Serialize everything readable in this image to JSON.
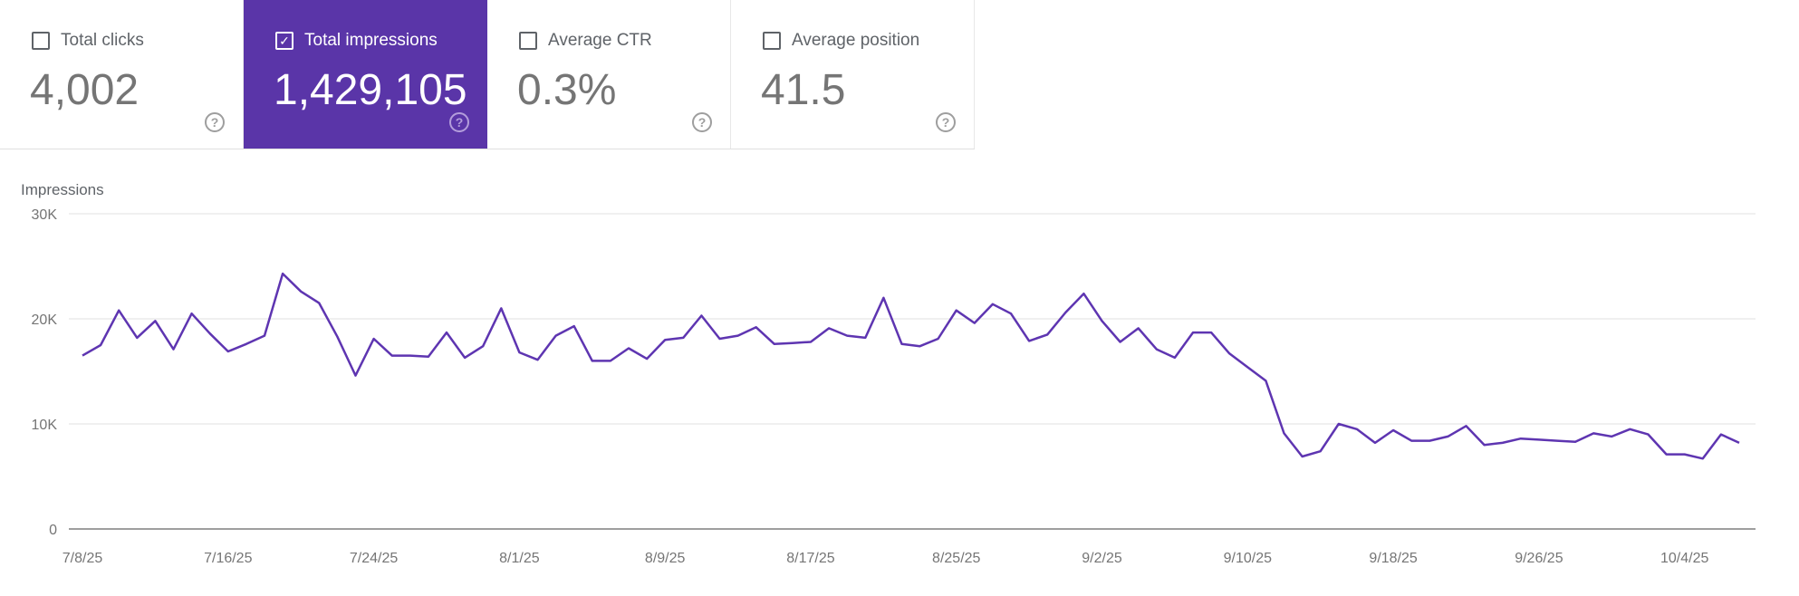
{
  "metrics": [
    {
      "label": "Total clicks",
      "value": "4,002",
      "checked": false
    },
    {
      "label": "Total impressions",
      "value": "1,429,105",
      "checked": true
    },
    {
      "label": "Average CTR",
      "value": "0.3%",
      "checked": false
    },
    {
      "label": "Average position",
      "value": "41.5",
      "checked": false
    }
  ],
  "icons": {
    "checkbox": "checkbox-icon",
    "help": "help-circle-icon"
  },
  "colors": {
    "accent": "#5a35a8",
    "line": "#5e35b1"
  },
  "chart_data": {
    "type": "line",
    "ylabel": "Impressions",
    "ylim": [
      0,
      30000
    ],
    "yticks": [
      "0",
      "10K",
      "20K",
      "30K"
    ],
    "ytick_values": [
      0,
      10000,
      20000,
      30000
    ],
    "grid": true,
    "x_start": "2025-07-08",
    "xticks": [
      "7/8/25",
      "7/16/25",
      "7/24/25",
      "8/1/25",
      "8/9/25",
      "8/17/25",
      "8/25/25",
      "9/2/25",
      "9/10/25",
      "9/18/25",
      "9/26/25",
      "10/4/25"
    ],
    "series": [
      {
        "values": [
          16500,
          17500,
          20800,
          18200,
          19800,
          17100,
          20500,
          18600,
          16900,
          17600,
          18400,
          24300,
          22600,
          21500,
          18300,
          14600,
          18100,
          16500,
          16500,
          16400,
          18700,
          16300,
          17400,
          21000,
          16800,
          16100,
          18400,
          19300,
          16000,
          16000,
          17200,
          16200,
          18000,
          18200,
          20300,
          18100,
          18400,
          19200,
          17600,
          17700,
          17800,
          19100,
          18400,
          18200,
          22000,
          17600,
          17400,
          18100,
          20800,
          19600,
          21400,
          20500,
          17900,
          18500,
          20600,
          22400,
          19800,
          17800,
          19100,
          17100,
          16300,
          18700,
          18700,
          16700,
          15400,
          14100,
          9100,
          6900,
          7400,
          10000,
          9500,
          8200,
          9400,
          8400,
          8400,
          8800,
          9800,
          8000,
          8200,
          8600,
          8500,
          8400,
          8300,
          9100,
          8800,
          9500,
          9000,
          7100,
          7100,
          6700,
          9000,
          8200
        ]
      }
    ]
  }
}
